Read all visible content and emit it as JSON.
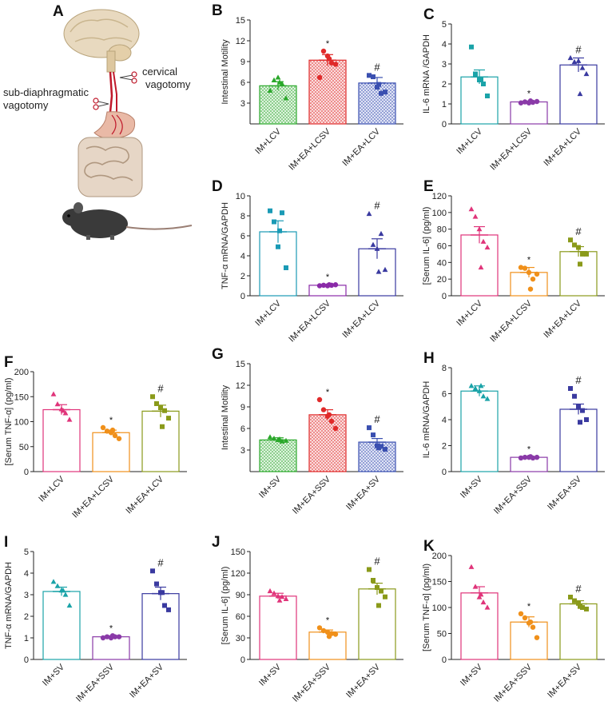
{
  "panel_a": {
    "label": "A",
    "annotations": {
      "cervical": "cervical\nvagotomy",
      "subdiaphragmatic": "sub-diaphragmatic\nvagotomy"
    }
  },
  "chart_data": [
    {
      "id": "B",
      "type": "bar",
      "ylabel": "Intestinal Motility",
      "categories": [
        "IM+LCV",
        "IM+EA+LCSV",
        "IM+EA+LCV"
      ],
      "ylim": [
        0,
        15
      ],
      "yticks": [
        3,
        6,
        9,
        12,
        15
      ],
      "values": [
        5.5,
        9.2,
        5.9
      ],
      "errors": [
        0.6,
        0.8,
        0.8
      ],
      "points": [
        [
          4.8,
          6.3,
          6.7,
          5.8,
          3.7,
          6.0
        ],
        [
          6.7,
          10.5,
          9.8,
          8.8,
          8.6,
          9.4
        ],
        [
          7.0,
          6.8,
          5.3,
          4.4,
          4.6,
          5.7
        ]
      ],
      "markers": [
        "triangle",
        "circle",
        "square"
      ],
      "colors": [
        "#2aa82a",
        "#e02a2a",
        "#3a4fb0"
      ],
      "patterns": [
        "dots",
        "dots",
        "dots"
      ],
      "sig": [
        "",
        "*",
        "#"
      ]
    },
    {
      "id": "C",
      "type": "bar",
      "ylabel": "IL-6 mRNA /GAPDH",
      "categories": [
        "IM+LCV",
        "IM+EA+LCSV",
        "IM+EA+LCV"
      ],
      "ylim": [
        0,
        5
      ],
      "yticks": [
        0,
        1,
        2,
        3,
        4,
        5
      ],
      "values": [
        2.35,
        1.1,
        2.95
      ],
      "errors": [
        0.35,
        0.05,
        0.35
      ],
      "points": [
        [
          3.85,
          2.5,
          2.2,
          2.0,
          1.4,
          2.2
        ],
        [
          1.05,
          1.1,
          1.05,
          1.08,
          1.12,
          1.15
        ],
        [
          3.3,
          3.1,
          3.15,
          2.8,
          2.5,
          1.5
        ]
      ],
      "markers": [
        "square",
        "circle",
        "triangle"
      ],
      "colors": [
        "#1aa3a8",
        "#8a3aa8",
        "#3a3aa0"
      ],
      "patterns": [
        "none",
        "none",
        "none"
      ],
      "sig": [
        "",
        "*",
        "#"
      ]
    },
    {
      "id": "D",
      "type": "bar",
      "ylabel": "TNF-α mRNA/GAPDH",
      "categories": [
        "IM+LCV",
        "IM+EA+LCSV",
        "IM+EA+LCV"
      ],
      "ylim": [
        0,
        10
      ],
      "yticks": [
        0,
        2,
        4,
        6,
        8,
        10
      ],
      "values": [
        6.4,
        1.05,
        4.7
      ],
      "errors": [
        1.1,
        0.08,
        1.0
      ],
      "points": [
        [
          8.5,
          7.4,
          4.9,
          8.3,
          2.8,
          6.5
        ],
        [
          1.0,
          1.05,
          1.0,
          1.05,
          1.1,
          1.1
        ],
        [
          8.2,
          5.1,
          4.7,
          6.2,
          2.6,
          2.4
        ]
      ],
      "markers": [
        "square",
        "circle",
        "triangle"
      ],
      "colors": [
        "#1a9ab5",
        "#8a2aa8",
        "#3a3aa0"
      ],
      "patterns": [
        "none",
        "none",
        "none"
      ],
      "sig": [
        "",
        "*",
        "#"
      ]
    },
    {
      "id": "E",
      "type": "bar",
      "ylabel": "[Serum IL-6]  (pg/ml)",
      "categories": [
        "IM+LCV",
        "IM+EA+LCSV",
        "IM+EA+LCV"
      ],
      "ylim": [
        0,
        120
      ],
      "yticks": [
        0,
        20,
        40,
        60,
        80,
        100,
        120
      ],
      "values": [
        73,
        28,
        53
      ],
      "errors": [
        10,
        6,
        6
      ],
      "points": [
        [
          104,
          95,
          80,
          65,
          58,
          34
        ],
        [
          34,
          33,
          28,
          20,
          26,
          8
        ],
        [
          67,
          61,
          58,
          50,
          50,
          38
        ]
      ],
      "markers": [
        "triangle",
        "circle",
        "square"
      ],
      "colors": [
        "#e0347a",
        "#f0901a",
        "#8a9a1a"
      ],
      "patterns": [
        "none",
        "none",
        "none"
      ],
      "sig": [
        "",
        "*",
        "#"
      ]
    },
    {
      "id": "F",
      "type": "bar",
      "ylabel": "[Serum TNF-α]  (pg/ml)",
      "categories": [
        "IM+LCV",
        "IM+EA+LCSV",
        "IM+EA+LCV"
      ],
      "ylim": [
        0,
        200
      ],
      "yticks": [
        0,
        50,
        100,
        150,
        200
      ],
      "values": [
        124,
        78,
        121
      ],
      "errors": [
        10,
        5,
        12
      ],
      "points": [
        [
          155,
          135,
          125,
          117,
          104,
          122
        ],
        [
          88,
          81,
          78,
          72,
          66,
          83
        ],
        [
          150,
          136,
          128,
          122,
          107,
          90
        ]
      ],
      "markers": [
        "triangle",
        "circle",
        "square"
      ],
      "colors": [
        "#e0347a",
        "#f0901a",
        "#8a9a1a"
      ],
      "patterns": [
        "none",
        "none",
        "none"
      ],
      "sig": [
        "",
        "*",
        "#"
      ]
    },
    {
      "id": "G",
      "type": "bar",
      "ylabel": "Intestinal Motility",
      "categories": [
        "IM+SV",
        "IM+EA+SSV",
        "IM+EA+SV"
      ],
      "ylim": [
        0,
        15
      ],
      "yticks": [
        3,
        6,
        9,
        12,
        15
      ],
      "values": [
        4.4,
        7.9,
        4.1
      ],
      "errors": [
        0.3,
        0.7,
        0.5
      ],
      "points": [
        [
          4.8,
          4.6,
          4.4,
          4.2,
          4.3,
          4.5
        ],
        [
          10.0,
          8.6,
          7.7,
          7.0,
          6.0,
          7.9
        ],
        [
          6.1,
          5.1,
          3.6,
          3.5,
          3.1,
          3.3
        ]
      ],
      "markers": [
        "triangle",
        "circle",
        "square"
      ],
      "colors": [
        "#2aa82a",
        "#e02a2a",
        "#3a4fb0"
      ],
      "patterns": [
        "dots",
        "dots",
        "dots"
      ],
      "sig": [
        "",
        "*",
        "#"
      ]
    },
    {
      "id": "H",
      "type": "bar",
      "ylabel": "IL-6 mRNA/GAPDH",
      "categories": [
        "IM+SV",
        "IM+EA+SSV",
        "IM+EA+SV"
      ],
      "ylim": [
        0,
        8
      ],
      "yticks": [
        0,
        2,
        4,
        6,
        8
      ],
      "values": [
        6.2,
        1.1,
        4.8
      ],
      "errors": [
        0.4,
        0.05,
        0.4
      ],
      "points": [
        [
          6.6,
          6.4,
          6.2,
          5.8,
          5.6,
          6.6
        ],
        [
          1.05,
          1.1,
          1.1,
          1.05,
          1.1,
          1.15
        ],
        [
          6.4,
          5.8,
          5.0,
          4.7,
          4.0,
          3.8
        ]
      ],
      "markers": [
        "triangle",
        "circle",
        "square"
      ],
      "colors": [
        "#1aa3a8",
        "#8a3aa8",
        "#3a3aa0"
      ],
      "patterns": [
        "none",
        "none",
        "none"
      ],
      "sig": [
        "",
        "*",
        "#"
      ]
    },
    {
      "id": "I",
      "type": "bar",
      "ylabel": "TNF-α mRNA/GAPDH",
      "categories": [
        "IM+SV",
        "IM+EA+SSV",
        "IM+EA+SV"
      ],
      "ylim": [
        0,
        5
      ],
      "yticks": [
        0,
        1,
        2,
        3,
        4,
        5
      ],
      "values": [
        3.15,
        1.05,
        3.05
      ],
      "errors": [
        0.2,
        0.05,
        0.3
      ],
      "points": [
        [
          3.6,
          3.4,
          3.2,
          3.0,
          2.5,
          3.2
        ],
        [
          1.0,
          1.05,
          1.0,
          1.05,
          1.05,
          1.1
        ],
        [
          4.1,
          3.5,
          3.1,
          2.5,
          2.3,
          3.1
        ]
      ],
      "markers": [
        "triangle",
        "circle",
        "square"
      ],
      "colors": [
        "#1aa3a8",
        "#8a3aa8",
        "#3a3aa0"
      ],
      "patterns": [
        "none",
        "none",
        "none"
      ],
      "sig": [
        "",
        "*",
        "#"
      ]
    },
    {
      "id": "J",
      "type": "bar",
      "ylabel": "[Serum IL-6]  (pg/ml)",
      "categories": [
        "IM+SV",
        "IM+EA+SSV",
        "IM+EA+SV"
      ],
      "ylim": [
        0,
        150
      ],
      "yticks": [
        0,
        30,
        60,
        90,
        120,
        150
      ],
      "values": [
        88,
        38,
        98
      ],
      "errors": [
        4,
        3,
        8
      ],
      "points": [
        [
          95,
          92,
          88,
          87,
          84,
          82
        ],
        [
          44,
          40,
          38,
          36,
          35,
          32
        ],
        [
          125,
          110,
          100,
          95,
          87,
          75
        ]
      ],
      "markers": [
        "triangle",
        "circle",
        "square"
      ],
      "colors": [
        "#e0347a",
        "#f0901a",
        "#8a9a1a"
      ],
      "patterns": [
        "none",
        "none",
        "none"
      ],
      "sig": [
        "",
        "*",
        "#"
      ]
    },
    {
      "id": "K",
      "type": "bar",
      "ylabel": "[Serum TNF-α]  (pg/ml)",
      "categories": [
        "IM+SV",
        "IM+EA+SSV",
        "IM+EA+SV"
      ],
      "ylim": [
        0,
        200
      ],
      "yticks": [
        0,
        50,
        100,
        150,
        200
      ],
      "values": [
        128,
        72,
        107
      ],
      "errors": [
        12,
        10,
        6
      ],
      "points": [
        [
          178,
          140,
          120,
          110,
          100,
          125
        ],
        [
          88,
          80,
          70,
          62,
          42,
          72
        ],
        [
          120,
          113,
          108,
          100,
          97,
          102
        ]
      ],
      "markers": [
        "triangle",
        "circle",
        "square"
      ],
      "colors": [
        "#e0347a",
        "#f0901a",
        "#8a9a1a"
      ],
      "patterns": [
        "none",
        "none",
        "none"
      ],
      "sig": [
        "",
        "*",
        "#"
      ]
    }
  ]
}
